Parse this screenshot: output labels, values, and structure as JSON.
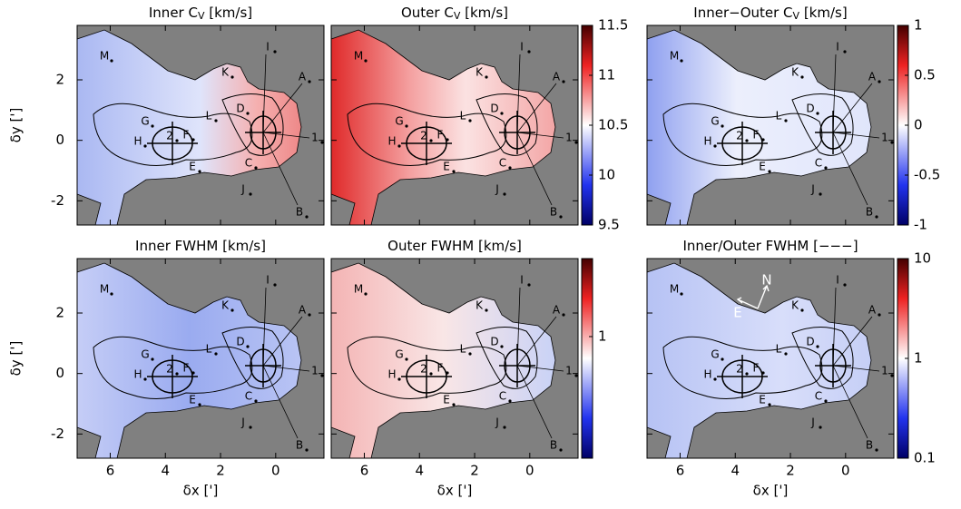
{
  "chart_data": {
    "type": "heatmap",
    "xlabel": "δx [']",
    "ylabel": "δy [']",
    "xlim": [
      7.2,
      -1.75
    ],
    "ylim": [
      -2.8,
      3.8
    ],
    "xticks": [
      6,
      4,
      2,
      0
    ],
    "yticks": [
      2,
      0,
      -2
    ],
    "annotations": [
      "M",
      "K",
      "L",
      "G",
      "H",
      "F",
      "E",
      "D",
      "C",
      "J",
      "B",
      "A",
      "I",
      "1",
      "2"
    ],
    "compass": [
      "N",
      "E"
    ],
    "panels": [
      {
        "title": {
          "text": "Inner C",
          "subscript": "V",
          "suffix": " [km/s]"
        }
      },
      {
        "title": {
          "text": "Outer C",
          "subscript": "V",
          "suffix": " [km/s]"
        },
        "colorbar": {
          "lim": [
            9.5,
            11.5
          ],
          "ticks": [
            9.5,
            10,
            10.5,
            11,
            11.5
          ],
          "log": false
        }
      },
      {
        "title": {
          "text": "Inner−Outer C",
          "subscript": "V",
          "suffix": " [km/s]"
        },
        "colorbar": {
          "lim": [
            -1,
            1
          ],
          "ticks": [
            1,
            0.5,
            0,
            -0.5,
            -1
          ],
          "log": false
        }
      },
      {
        "title": {
          "text": "Inner FWHM [km/s]"
        }
      },
      {
        "title": {
          "text": "Outer FWHM [km/s]"
        },
        "colorbar": {
          "lim": [
            0.4,
            1.8
          ],
          "ticks": [
            1
          ],
          "log": true
        }
      },
      {
        "title": {
          "text": "Inner/Outer FWHM  [−−−]"
        },
        "colorbar": {
          "lim": [
            0.1,
            10
          ],
          "ticks": [
            10,
            1,
            0.1
          ],
          "log": true
        }
      }
    ]
  }
}
